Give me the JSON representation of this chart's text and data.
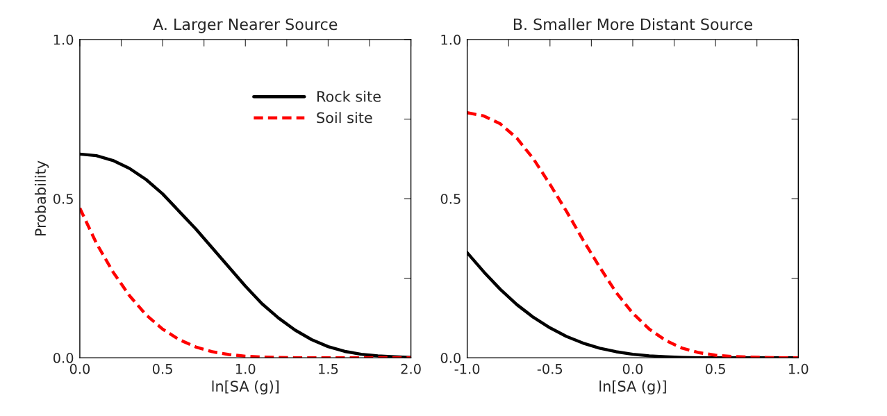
{
  "chart_data": [
    {
      "type": "line",
      "title": "A. Larger Nearer Source",
      "xlabel": "ln[SA (g)]",
      "ylabel": "Probability",
      "legend": "top right",
      "grid": false,
      "xlim": [
        0,
        2
      ],
      "ylim": [
        0,
        1
      ],
      "xticks": [
        {
          "value": 0,
          "label": "0.0"
        },
        {
          "value": 0.25,
          "label": null
        },
        {
          "value": 0.5,
          "label": "0.5"
        },
        {
          "value": 0.75,
          "label": null
        },
        {
          "value": 1,
          "label": "1.0"
        },
        {
          "value": 1.25,
          "label": null
        },
        {
          "value": 1.5,
          "label": "1.5"
        },
        {
          "value": 1.75,
          "label": null
        },
        {
          "value": 2,
          "label": "2.0"
        }
      ],
      "yticks": [
        {
          "value": 0,
          "label": "0.0"
        },
        {
          "value": 0.25,
          "label": null
        },
        {
          "value": 0.5,
          "label": "0.5"
        },
        {
          "value": 0.75,
          "label": null
        },
        {
          "value": 1,
          "label": "1.0"
        }
      ],
      "x": [
        0,
        0.1,
        0.2,
        0.3,
        0.4,
        0.5,
        0.6,
        0.7,
        0.8,
        0.9,
        1.0,
        1.1,
        1.2,
        1.3,
        1.4,
        1.5,
        1.6,
        1.7,
        1.8,
        1.9,
        2.0
      ],
      "series": [
        {
          "name": "Rock site",
          "color": "#000000",
          "line_style": "solid",
          "values": [
            0.64,
            0.635,
            0.62,
            0.595,
            0.56,
            0.515,
            0.46,
            0.405,
            0.345,
            0.285,
            0.225,
            0.17,
            0.125,
            0.087,
            0.057,
            0.035,
            0.02,
            0.011,
            0.006,
            0.003,
            0.001
          ]
        },
        {
          "name": "Soil site",
          "color": "#ff0000",
          "line_style": "dashed",
          "values": [
            0.47,
            0.36,
            0.27,
            0.195,
            0.135,
            0.09,
            0.057,
            0.034,
            0.019,
            0.01,
            0.005,
            0.002,
            0.001,
            0.0,
            0.0,
            0.0,
            0.0,
            0.0,
            0.0,
            0.0,
            0.0
          ]
        }
      ]
    },
    {
      "type": "line",
      "title": "B. Smaller More Distant Source",
      "xlabel": "ln[SA (g)]",
      "grid": false,
      "xlim": [
        -1,
        1
      ],
      "ylim": [
        0,
        1
      ],
      "xticks": [
        {
          "value": -1,
          "label": "-1.0"
        },
        {
          "value": -0.75,
          "label": null
        },
        {
          "value": -0.5,
          "label": "-0.5"
        },
        {
          "value": -0.25,
          "label": null
        },
        {
          "value": 0,
          "label": "0.0"
        },
        {
          "value": 0.25,
          "label": null
        },
        {
          "value": 0.5,
          "label": "0.5"
        },
        {
          "value": 0.75,
          "label": null
        },
        {
          "value": 1,
          "label": "1.0"
        }
      ],
      "yticks": [
        {
          "value": 0,
          "label": "0.0"
        },
        {
          "value": 0.25,
          "label": null
        },
        {
          "value": 0.5,
          "label": "0.5"
        },
        {
          "value": 0.75,
          "label": null
        },
        {
          "value": 1,
          "label": "1.0"
        }
      ],
      "x": [
        -1.0,
        -0.9,
        -0.8,
        -0.7,
        -0.6,
        -0.5,
        -0.4,
        -0.3,
        -0.2,
        -0.1,
        0.0,
        0.1,
        0.2,
        0.3,
        0.4,
        0.5,
        0.6,
        0.7,
        0.8,
        0.9,
        1.0
      ],
      "series": [
        {
          "color": "#000000",
          "line_style": "solid",
          "values": [
            0.33,
            0.27,
            0.215,
            0.167,
            0.127,
            0.094,
            0.067,
            0.046,
            0.03,
            0.019,
            0.011,
            0.006,
            0.003,
            0.001,
            0.0,
            0.0,
            0.0,
            0.0,
            0.0,
            0.0,
            0.0
          ]
        },
        {
          "color": "#ff0000",
          "line_style": "dashed",
          "values": [
            0.77,
            0.76,
            0.735,
            0.69,
            0.625,
            0.545,
            0.46,
            0.37,
            0.285,
            0.205,
            0.14,
            0.09,
            0.054,
            0.03,
            0.016,
            0.008,
            0.004,
            0.002,
            0.001,
            0.0,
            0.0
          ]
        }
      ]
    }
  ]
}
